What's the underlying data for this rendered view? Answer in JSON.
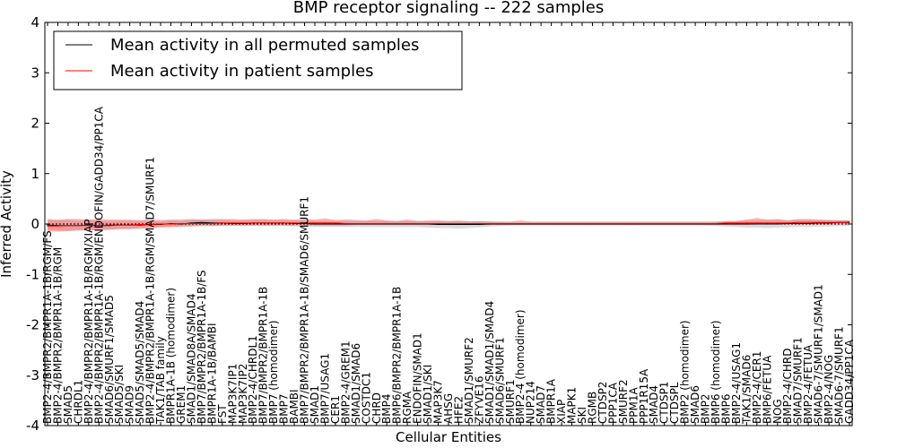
{
  "chart_data": {
    "type": "line",
    "title": "BMP receptor signaling -- 222 samples",
    "xlabel": "Cellular Entities",
    "ylabel": "Inferred Activity",
    "ylim": [
      -4,
      4
    ],
    "yticks": [
      4,
      3,
      2,
      1,
      0,
      -1,
      -2,
      -3,
      -4
    ],
    "grid": false,
    "legend_position": "top-left",
    "categories": [
      "BMP2-4/BMPR2/BMPR1A-1B/RGM/FS",
      "BMP2-4/BMPR2/BMPR1A-1B/RGM",
      "SMAD5",
      "CHRDL1",
      "BMP2-4/BMPR2/BMPR1A-1B/RGM/XIAP",
      "BMP2-4/BMPR2/BMPR1A-1B/RGM/ENDOFIN/GADD34/PP1CA",
      "SMAD6/SMURF1/SMAD5",
      "SMAD5/SKI",
      "SMAD9",
      "SMAD5/SMAD5/SMAD4",
      "BMP2-4/BMPR2/BMPR1A-1B/RGM/SMAD7/SMURF1",
      "TAK1/TAB family",
      "BMPR1A-1B (homodimer)",
      "GREM1",
      "SMAD1/SMAD8A/SMAD4",
      "BMP7/BMPR2/BMPR1A-1B/FS",
      "BMPR1A-1B/BAMBI",
      "FST",
      "MAP3K7IP1",
      "MAP3K7IP2",
      "BMP2-4/CHRDL1",
      "BMP7/BMPR2/BMPR1A-1B",
      "BMP7 (homodimer)",
      "BMP7",
      "BAMBI",
      "BMP7/BMPR2/BMPR1A-1B/SMAD6/SMURF1",
      "SMAD1",
      "BMP7/USAG1",
      "CER1",
      "BMP2-4/GREM1",
      "SMAD1/SMAD6",
      "COSTDC1",
      "CHRD",
      "BMP4",
      "BMP6/BMPR2/BMPR1A-1B",
      "RGMA",
      "ENDOFIN/SMAD1",
      "SMAD1/SKI",
      "MAP3K7",
      "AHSG",
      "HFE2",
      "SMAD1/SMURF2",
      "ZFYVE16",
      "SMAD1/SMAD1/SMAD4",
      "SMAD6/SMURF1",
      "SMURF1",
      "BMP2-4 (homodimer)",
      "NUP214",
      "SMAD7",
      "BMPR1A",
      "XIAP",
      "MAPK1",
      "SKI",
      "RGMB",
      "CTDSP2",
      "PPP1CA",
      "SMURF2",
      "PPM1A",
      "PPP1R15A",
      "SMAD4",
      "CTDSP1",
      "CTDSPL",
      "BMP2 (homodimer)",
      "SMAD6",
      "BMP2",
      "BMP6 (homodimer)",
      "BMP6",
      "BMP2-4/USAG1",
      "TAK1/SMAD6",
      "BMP2-4/CER1",
      "BMP6/FETUA",
      "NOG",
      "BMP2-4/CHRD",
      "SMAD7/SMURF1",
      "BMP2-4/FETUA",
      "SMAD6-7/SMURF1/SMAD1",
      "BMP2-4/NOG",
      "SMAD6-7/SMURF1",
      "GADD34/PP1CA"
    ],
    "series": [
      {
        "name": "Mean activity in all permuted samples",
        "color": "#000000",
        "values": [
          -0.02,
          -0.03,
          -0.03,
          -0.03,
          -0.02,
          -0.03,
          -0.03,
          -0.02,
          -0.02,
          -0.02,
          -0.01,
          -0.01,
          0.01,
          0.0,
          0.02,
          0.03,
          0.02,
          0.02,
          0.01,
          0.01,
          0.02,
          0.02,
          0.02,
          0.02,
          0.01,
          0.01,
          0.0,
          0.0,
          0.0,
          0.0,
          0.0,
          0.0,
          0.0,
          0.0,
          0.0,
          0.0,
          0.0,
          0.0,
          -0.01,
          -0.01,
          -0.01,
          -0.01,
          -0.01,
          0.0,
          0.0,
          0.0,
          0.0,
          0.0,
          0.0,
          0.0,
          0.0,
          0.0,
          0.0,
          0.0,
          0.0,
          0.0,
          0.0,
          0.0,
          0.0,
          0.0,
          0.0,
          0.0,
          0.0,
          0.0,
          0.0,
          0.0,
          0.0,
          0.0,
          0.0,
          0.0,
          0.0,
          0.0,
          0.01,
          0.01,
          0.01,
          0.02,
          0.02,
          0.03,
          0.03
        ],
        "band_lower": [
          -0.12,
          -0.13,
          -0.14,
          -0.12,
          -0.12,
          -0.12,
          -0.12,
          -0.1,
          -0.1,
          -0.1,
          -0.08,
          -0.07,
          -0.06,
          -0.06,
          -0.04,
          -0.03,
          -0.04,
          -0.04,
          -0.04,
          -0.04,
          -0.04,
          -0.04,
          -0.04,
          -0.04,
          -0.05,
          -0.05,
          -0.06,
          -0.06,
          -0.06,
          -0.06,
          -0.06,
          -0.06,
          -0.06,
          -0.06,
          -0.06,
          -0.06,
          -0.06,
          -0.07,
          -0.08,
          -0.08,
          -0.09,
          -0.08,
          -0.07,
          -0.05,
          -0.04,
          -0.03,
          -0.03,
          -0.03,
          -0.03,
          -0.03,
          -0.03,
          -0.03,
          -0.03,
          -0.03,
          -0.03,
          -0.03,
          -0.03,
          -0.03,
          -0.03,
          -0.03,
          -0.03,
          -0.03,
          -0.03,
          -0.03,
          -0.03,
          -0.04,
          -0.05,
          -0.06,
          -0.07,
          -0.07,
          -0.08,
          -0.07,
          -0.07,
          -0.06,
          -0.06,
          -0.05,
          -0.05,
          -0.04,
          -0.04
        ],
        "band_upper": [
          0.08,
          0.07,
          0.08,
          0.06,
          0.08,
          0.06,
          0.06,
          0.06,
          0.06,
          0.06,
          0.06,
          0.05,
          0.07,
          0.06,
          0.08,
          0.09,
          0.08,
          0.08,
          0.07,
          0.07,
          0.08,
          0.08,
          0.08,
          0.08,
          0.07,
          0.07,
          0.06,
          0.06,
          0.06,
          0.06,
          0.06,
          0.06,
          0.06,
          0.06,
          0.06,
          0.06,
          0.06,
          0.05,
          0.06,
          0.06,
          0.07,
          0.06,
          0.05,
          0.05,
          0.04,
          0.03,
          0.03,
          0.03,
          0.03,
          0.03,
          0.03,
          0.03,
          0.03,
          0.03,
          0.03,
          0.03,
          0.03,
          0.03,
          0.03,
          0.03,
          0.03,
          0.03,
          0.03,
          0.03,
          0.03,
          0.04,
          0.05,
          0.06,
          0.07,
          0.07,
          0.08,
          0.08,
          0.08,
          0.08,
          0.08,
          0.08,
          0.08,
          0.08,
          0.08
        ]
      },
      {
        "name": "Mean activity in patient samples",
        "color": "#ff0000",
        "values": [
          -0.04,
          -0.04,
          -0.03,
          -0.03,
          -0.03,
          -0.03,
          -0.02,
          -0.02,
          -0.02,
          -0.01,
          -0.01,
          0.0,
          0.0,
          0.01,
          0.01,
          0.01,
          0.01,
          0.02,
          0.02,
          0.02,
          0.02,
          0.02,
          0.02,
          0.02,
          0.02,
          0.02,
          0.02,
          0.02,
          0.02,
          0.01,
          0.01,
          0.01,
          0.01,
          0.01,
          0.01,
          0.01,
          0.01,
          0.01,
          0.01,
          0.01,
          0.01,
          0.01,
          0.01,
          0.01,
          0.01,
          0.01,
          0.01,
          0.01,
          0.01,
          0.01,
          0.01,
          0.01,
          0.01,
          0.01,
          0.01,
          0.01,
          0.01,
          0.01,
          0.01,
          0.01,
          0.01,
          0.01,
          0.01,
          0.01,
          0.01,
          0.01,
          0.02,
          0.02,
          0.02,
          0.02,
          0.02,
          0.02,
          0.02,
          0.03,
          0.03,
          0.03,
          0.03,
          0.03,
          0.04
        ],
        "band_lower": [
          -0.14,
          -0.15,
          -0.14,
          -0.13,
          -0.13,
          -0.12,
          -0.11,
          -0.1,
          -0.1,
          -0.08,
          -0.08,
          -0.06,
          -0.06,
          -0.05,
          -0.05,
          -0.04,
          -0.04,
          -0.03,
          -0.03,
          -0.03,
          -0.03,
          -0.03,
          -0.03,
          -0.03,
          -0.03,
          -0.03,
          -0.03,
          -0.03,
          -0.03,
          -0.03,
          -0.02,
          -0.02,
          -0.02,
          -0.02,
          -0.02,
          -0.02,
          -0.02,
          -0.02,
          -0.02,
          -0.02,
          -0.02,
          -0.02,
          -0.02,
          -0.02,
          -0.02,
          -0.02,
          -0.02,
          -0.02,
          -0.02,
          -0.02,
          -0.02,
          -0.02,
          -0.02,
          -0.02,
          -0.02,
          -0.02,
          -0.02,
          -0.02,
          -0.02,
          -0.02,
          -0.02,
          -0.02,
          -0.02,
          -0.02,
          -0.02,
          -0.02,
          -0.02,
          -0.02,
          -0.02,
          -0.01,
          -0.01,
          -0.01,
          -0.01,
          -0.01,
          -0.01,
          -0.01,
          -0.01,
          -0.01,
          0.0
        ],
        "band_upper": [
          0.1,
          0.09,
          0.1,
          0.1,
          0.09,
          0.1,
          0.09,
          0.09,
          0.09,
          0.08,
          0.09,
          0.08,
          0.09,
          0.09,
          0.1,
          0.09,
          0.1,
          0.1,
          0.1,
          0.09,
          0.1,
          0.1,
          0.09,
          0.1,
          0.09,
          0.1,
          0.09,
          0.11,
          0.08,
          0.09,
          0.08,
          0.07,
          0.1,
          0.07,
          0.06,
          0.09,
          0.06,
          0.07,
          0.07,
          0.06,
          0.06,
          0.05,
          0.06,
          0.05,
          0.05,
          0.05,
          0.07,
          0.05,
          0.05,
          0.05,
          0.05,
          0.05,
          0.05,
          0.05,
          0.05,
          0.05,
          0.05,
          0.05,
          0.05,
          0.05,
          0.05,
          0.05,
          0.05,
          0.05,
          0.05,
          0.05,
          0.06,
          0.06,
          0.09,
          0.12,
          0.09,
          0.1,
          0.07,
          0.1,
          0.1,
          0.09,
          0.08,
          0.07,
          0.07
        ]
      }
    ]
  }
}
